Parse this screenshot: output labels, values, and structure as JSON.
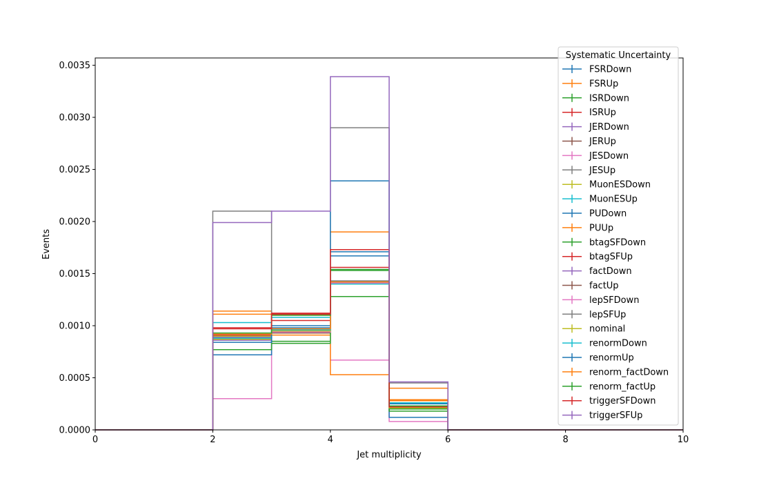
{
  "chart_data": {
    "type": "step-histogram",
    "xlabel": "Jet multiplicity",
    "ylabel": "Events",
    "xlim": [
      0,
      10
    ],
    "ylim": [
      0,
      0.00357
    ],
    "x_ticks": [
      "0",
      "2",
      "4",
      "6",
      "8",
      "10"
    ],
    "y_ticks": [
      "0.0000",
      "0.0005",
      "0.0010",
      "0.0015",
      "0.0020",
      "0.0025",
      "0.0030",
      "0.0035"
    ],
    "bin_edges": [
      0,
      2,
      3,
      4,
      5,
      6,
      10
    ],
    "legend_title": "Systematic Uncertainty",
    "legend_position": "upper-right",
    "grid": false,
    "series": [
      {
        "name": "FSRDown",
        "color": "#1f77b4",
        "values": [
          0,
          0.00087,
          0.00095,
          0.00167,
          0.0002,
          0
        ]
      },
      {
        "name": "FSRUp",
        "color": "#ff7f0e",
        "values": [
          0,
          0.00114,
          0.00091,
          0.0019,
          0.00029,
          0
        ]
      },
      {
        "name": "ISRDown",
        "color": "#2ca02c",
        "values": [
          0,
          0.00088,
          0.00085,
          0.00153,
          0.0002,
          0
        ]
      },
      {
        "name": "ISRUp",
        "color": "#d62728",
        "values": [
          0,
          0.00091,
          0.00105,
          0.00156,
          0.00021,
          0
        ]
      },
      {
        "name": "JERDown",
        "color": "#9467bd",
        "values": [
          0,
          0.00089,
          0.00095,
          0.00141,
          0.00021,
          0
        ]
      },
      {
        "name": "JERUp",
        "color": "#8c564b",
        "values": [
          0,
          0.0009,
          0.00093,
          0.00142,
          0.00022,
          0
        ]
      },
      {
        "name": "JESDown",
        "color": "#e377c2",
        "values": [
          0,
          0.0003,
          0.00095,
          0.00067,
          8e-05,
          0
        ]
      },
      {
        "name": "JESUp",
        "color": "#7f7f7f",
        "values": [
          0,
          0.0021,
          0.00111,
          0.0029,
          0.00045,
          0
        ]
      },
      {
        "name": "MuonESDown",
        "color": "#bcbd22",
        "values": [
          0,
          0.0009,
          0.00096,
          0.0014,
          0.00021,
          0
        ]
      },
      {
        "name": "MuonESUp",
        "color": "#17becf",
        "values": [
          0,
          0.00103,
          0.00108,
          0.0014,
          0.00026,
          0
        ]
      },
      {
        "name": "PUDown",
        "color": "#1f77b4",
        "values": [
          0,
          0.00072,
          0.00098,
          0.00239,
          0.00012,
          0
        ]
      },
      {
        "name": "PUUp",
        "color": "#ff7f0e",
        "values": [
          0,
          0.00111,
          0.0011,
          0.00053,
          0.0004,
          0
        ]
      },
      {
        "name": "btagSFDown",
        "color": "#2ca02c",
        "values": [
          0,
          0.00077,
          0.00083,
          0.00128,
          0.00018,
          0
        ]
      },
      {
        "name": "btagSFUp",
        "color": "#d62728",
        "values": [
          0,
          0.00098,
          0.00112,
          0.00173,
          0.00022,
          0
        ]
      },
      {
        "name": "factDown",
        "color": "#9467bd",
        "values": [
          0,
          0.00086,
          0.00094,
          0.00142,
          0.00021,
          0
        ]
      },
      {
        "name": "factUp",
        "color": "#8c564b",
        "values": [
          0,
          0.00088,
          0.00095,
          0.00143,
          0.00021,
          0
        ]
      },
      {
        "name": "lepSFDown",
        "color": "#e377c2",
        "values": [
          0,
          0.00087,
          0.00094,
          0.00141,
          0.00021,
          0
        ]
      },
      {
        "name": "lepSFUp",
        "color": "#7f7f7f",
        "values": [
          0,
          0.00088,
          0.00096,
          0.00143,
          0.00021,
          0
        ]
      },
      {
        "name": "nominal",
        "color": "#bcbd22",
        "values": [
          0,
          0.00087,
          0.00095,
          0.00142,
          0.00021,
          0
        ]
      },
      {
        "name": "renormDown",
        "color": "#17becf",
        "values": [
          0,
          0.00088,
          0.00096,
          0.00142,
          0.00022,
          0
        ]
      },
      {
        "name": "renormUp",
        "color": "#1f77b4",
        "values": [
          0,
          0.00084,
          0.001,
          0.00171,
          0.00025,
          0
        ]
      },
      {
        "name": "renorm_factDown",
        "color": "#ff7f0e",
        "values": [
          0,
          0.00092,
          0.00097,
          0.00142,
          0.00028,
          0
        ]
      },
      {
        "name": "renorm_factUp",
        "color": "#2ca02c",
        "values": [
          0,
          0.00093,
          0.0011,
          0.00154,
          0.00023,
          0
        ]
      },
      {
        "name": "triggerSFDown",
        "color": "#d62728",
        "values": [
          0,
          0.00097,
          0.00111,
          0.00173,
          0.00022,
          0
        ]
      },
      {
        "name": "triggerSFUp",
        "color": "#9467bd",
        "values": [
          0,
          0.00199,
          0.0021,
          0.00339,
          0.00046,
          0
        ]
      }
    ]
  }
}
